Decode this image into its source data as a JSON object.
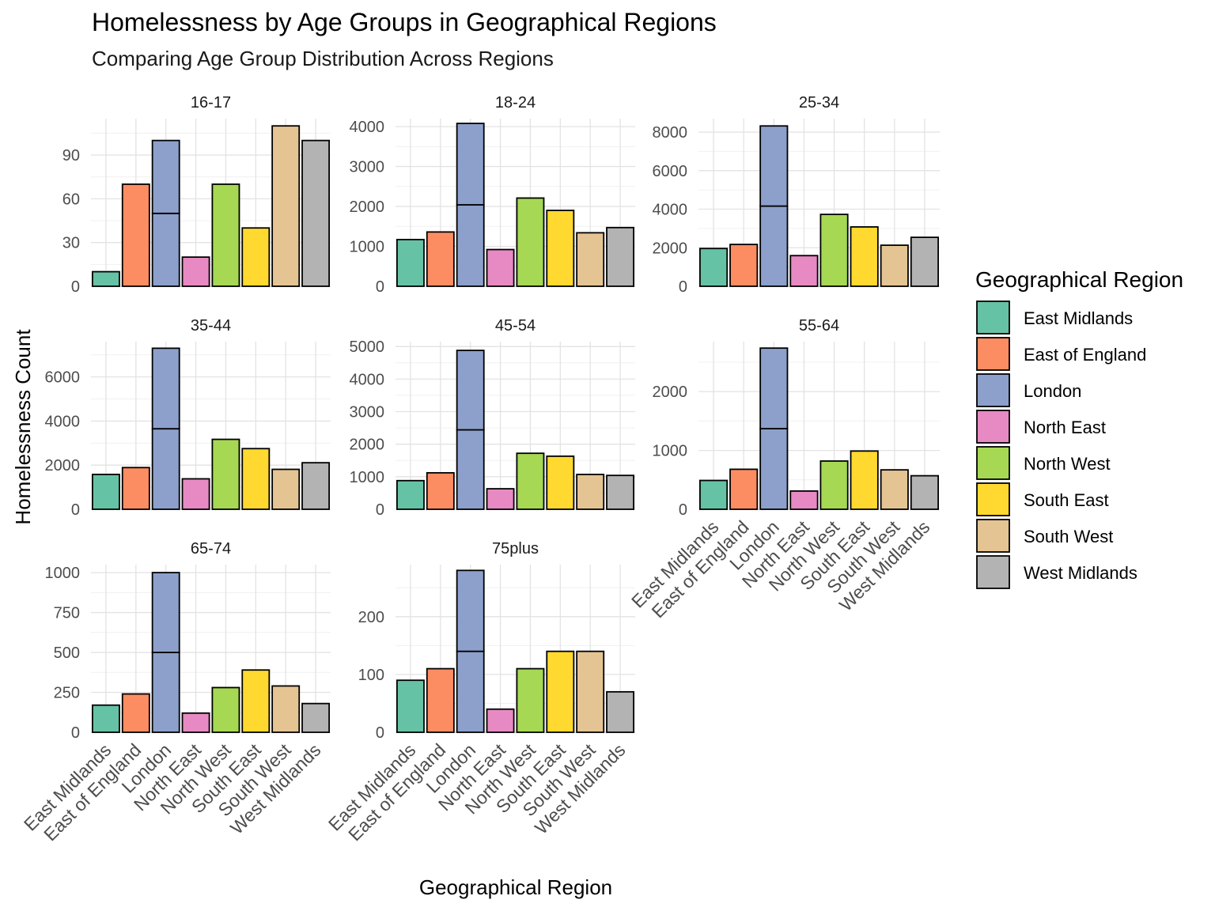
{
  "title": "Homelessness by Age Groups in Geographical Regions",
  "subtitle": "Comparing Age Group Distribution Across Regions",
  "chart_data": {
    "type": "bar",
    "faceted": true,
    "stacked": true,
    "xlabel": "Geographical Region",
    "ylabel": "Homelessness Count",
    "legend_title": "Geographical Region",
    "legend_position": "right",
    "grid": true,
    "categories": [
      "East Midlands",
      "East of England",
      "London",
      "North East",
      "North West",
      "South East",
      "South West",
      "West Midlands"
    ],
    "colors": [
      "#66C2A5",
      "#FC8D62",
      "#8DA0CB",
      "#E78AC3",
      "#A6D854",
      "#FFD92F",
      "#E5C494",
      "#B3B3B3"
    ],
    "panels": [
      {
        "label": "16-17",
        "ylim": [
          0,
          115
        ],
        "yticks": [
          0,
          30,
          60,
          90
        ],
        "values": [
          10,
          70,
          [
            50,
            50
          ],
          20,
          70,
          40,
          110,
          100
        ]
      },
      {
        "label": "18-24",
        "ylim": [
          0,
          4200
        ],
        "yticks": [
          0,
          1000,
          2000,
          3000,
          4000
        ],
        "values": [
          1170,
          1360,
          [
            2040,
            2040
          ],
          920,
          2210,
          1900,
          1340,
          1470
        ]
      },
      {
        "label": "25-34",
        "ylim": [
          0,
          8700
        ],
        "yticks": [
          0,
          2000,
          4000,
          6000,
          8000
        ],
        "values": [
          1960,
          2170,
          [
            4160,
            4160
          ],
          1590,
          3730,
          3080,
          2130,
          2540
        ]
      },
      {
        "label": "35-44",
        "ylim": [
          0,
          7600
        ],
        "yticks": [
          0,
          2000,
          4000,
          6000
        ],
        "values": [
          1580,
          1890,
          [
            3650,
            3650
          ],
          1380,
          3170,
          2750,
          1810,
          2110
        ]
      },
      {
        "label": "45-54",
        "ylim": [
          0,
          5150
        ],
        "yticks": [
          0,
          1000,
          2000,
          3000,
          4000,
          5000
        ],
        "values": [
          880,
          1120,
          [
            2440,
            2440
          ],
          630,
          1720,
          1630,
          1070,
          1040
        ]
      },
      {
        "label": "55-64",
        "ylim": [
          0,
          2850
        ],
        "yticks": [
          0,
          1000,
          2000
        ],
        "values": [
          490,
          680,
          [
            1370,
            1370
          ],
          310,
          820,
          990,
          670,
          570
        ]
      },
      {
        "label": "65-74",
        "ylim": [
          0,
          1050
        ],
        "yticks": [
          0,
          250,
          500,
          750,
          1000
        ],
        "values": [
          170,
          240,
          [
            500,
            500
          ],
          120,
          280,
          390,
          290,
          180
        ]
      },
      {
        "label": "75plus",
        "ylim": [
          0,
          290
        ],
        "yticks": [
          0,
          100,
          200
        ],
        "values": [
          90,
          110,
          [
            140,
            140
          ],
          40,
          110,
          140,
          140,
          70
        ]
      }
    ]
  }
}
